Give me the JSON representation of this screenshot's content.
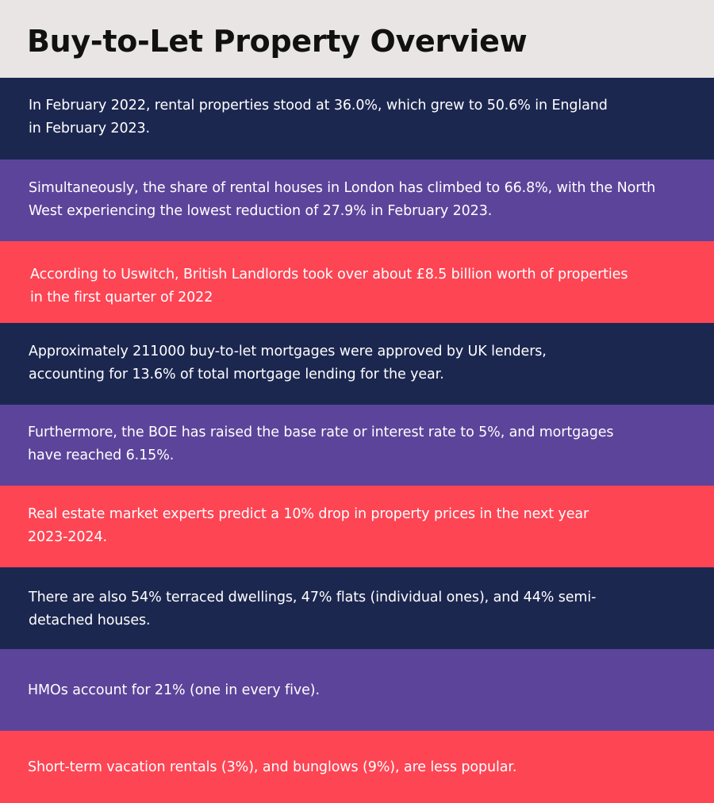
{
  "page": {
    "title": "Buy-to-Let Property Overview"
  },
  "colors": {
    "header_bg": "#e8e5e4",
    "title_text": "#111111",
    "navy": "#1c2750",
    "purple": "#5c449a",
    "red": "#fd4554",
    "band_text": "#ffffff"
  },
  "facts": [
    {
      "color": "navy",
      "text": "In February 2022, rental properties stood at 36.0%, which grew to 50.6% in England in February 2023."
    },
    {
      "color": "purple",
      "text": "Simultaneously, the share of rental houses in London has climbed to 66.8%, with the North West experiencing the lowest reduction of 27.9% in February 2023."
    },
    {
      "color": "red",
      "text": "According to Uswitch, British Landlords took over about £8.5 billion worth of properties in the first quarter of 2022"
    },
    {
      "color": "navy",
      "text": "Approximately 211000 buy-to-let mortgages were approved by UK lenders, accounting for 13.6% of total mortgage lending for the year."
    },
    {
      "color": "purple",
      "text": "Furthermore, the BOE has raised the base rate or interest rate to 5%, and mortgages have reached 6.15%."
    },
    {
      "color": "red",
      "text": "Real estate market experts predict a 10% drop in property prices in the next year 2023-2024."
    },
    {
      "color": "navy",
      "text": "There are also 54% terraced dwellings, 47% flats (individual ones), and 44% semi-detached houses."
    },
    {
      "color": "purple",
      "text": "HMOs account for 21% (one in every five)."
    },
    {
      "color": "red",
      "text": "Short-term vacation rentals (3%), and bunglows (9%), are less popular."
    }
  ]
}
